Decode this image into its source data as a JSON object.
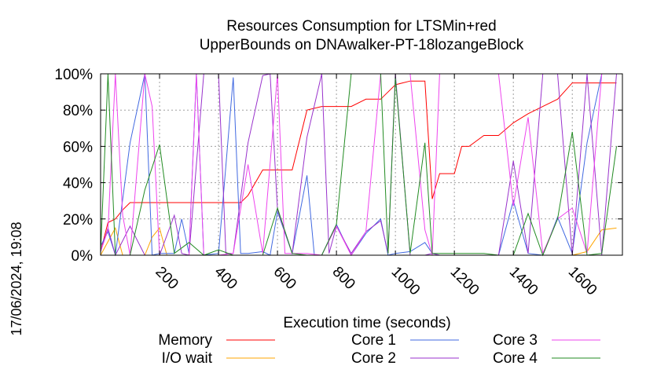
{
  "side_label": "17/06/2024, 19:08",
  "chart_data": {
    "type": "line",
    "title": "Resources Consumption for LTSMin+red\nUpperBounds on DNAwalker-PT-18lozangeBlock",
    "xlabel": "Execution time (seconds)",
    "ylabel": "",
    "xlim": [
      0,
      1770
    ],
    "ylim": [
      0,
      100
    ],
    "xticks": [
      200,
      400,
      600,
      800,
      1000,
      1200,
      1400,
      1600
    ],
    "yticks": [
      0,
      20,
      40,
      60,
      80,
      100
    ],
    "ytick_labels": [
      "0%",
      "20%",
      "40%",
      "60%",
      "80%",
      "100%"
    ],
    "grid": true,
    "legend_position": "bottom",
    "series": [
      {
        "name": "Memory",
        "color": "#ff0000",
        "points": [
          [
            0,
            2
          ],
          [
            25,
            18
          ],
          [
            50,
            20
          ],
          [
            75,
            25
          ],
          [
            100,
            29
          ],
          [
            150,
            29
          ],
          [
            200,
            29
          ],
          [
            250,
            29
          ],
          [
            300,
            29
          ],
          [
            350,
            29
          ],
          [
            400,
            29
          ],
          [
            450,
            29
          ],
          [
            475,
            29
          ],
          [
            500,
            33
          ],
          [
            550,
            47
          ],
          [
            600,
            47
          ],
          [
            625,
            47
          ],
          [
            650,
            47
          ],
          [
            700,
            80
          ],
          [
            750,
            82
          ],
          [
            800,
            82
          ],
          [
            850,
            82
          ],
          [
            900,
            86
          ],
          [
            950,
            86
          ],
          [
            1000,
            94
          ],
          [
            1050,
            96
          ],
          [
            1100,
            96
          ],
          [
            1125,
            31
          ],
          [
            1150,
            45
          ],
          [
            1175,
            45
          ],
          [
            1200,
            45
          ],
          [
            1225,
            60
          ],
          [
            1250,
            60
          ],
          [
            1300,
            66
          ],
          [
            1350,
            66
          ],
          [
            1400,
            73
          ],
          [
            1450,
            78
          ],
          [
            1500,
            82
          ],
          [
            1550,
            86
          ],
          [
            1600,
            95
          ],
          [
            1650,
            95
          ],
          [
            1700,
            95
          ],
          [
            1750,
            95
          ]
        ]
      },
      {
        "name": "I/O wait",
        "color": "#ffa500",
        "points": [
          [
            0,
            0
          ],
          [
            50,
            15
          ],
          [
            75,
            0
          ],
          [
            100,
            0
          ],
          [
            150,
            0
          ],
          [
            175,
            10
          ],
          [
            200,
            15
          ],
          [
            225,
            0
          ],
          [
            250,
            0
          ],
          [
            300,
            0
          ],
          [
            350,
            0
          ],
          [
            400,
            0
          ],
          [
            450,
            0
          ],
          [
            500,
            0
          ],
          [
            550,
            0
          ],
          [
            600,
            0
          ],
          [
            650,
            0
          ],
          [
            700,
            0
          ],
          [
            750,
            0
          ],
          [
            800,
            0
          ],
          [
            850,
            0
          ],
          [
            900,
            0
          ],
          [
            950,
            0
          ],
          [
            1000,
            0
          ],
          [
            1050,
            0
          ],
          [
            1100,
            0
          ],
          [
            1150,
            0
          ],
          [
            1200,
            0
          ],
          [
            1250,
            0
          ],
          [
            1300,
            0
          ],
          [
            1350,
            0
          ],
          [
            1400,
            0
          ],
          [
            1450,
            0
          ],
          [
            1500,
            0
          ],
          [
            1550,
            0
          ],
          [
            1600,
            0
          ],
          [
            1650,
            2
          ],
          [
            1700,
            14
          ],
          [
            1750,
            15
          ]
        ]
      },
      {
        "name": "Core 1",
        "color": "#4169e1",
        "points": [
          [
            0,
            5
          ],
          [
            25,
            13
          ],
          [
            50,
            0
          ],
          [
            100,
            62
          ],
          [
            150,
            100
          ],
          [
            175,
            0
          ],
          [
            200,
            1
          ],
          [
            250,
            1
          ],
          [
            275,
            20
          ],
          [
            300,
            1
          ],
          [
            325,
            100
          ],
          [
            350,
            0
          ],
          [
            400,
            1
          ],
          [
            450,
            98
          ],
          [
            475,
            1
          ],
          [
            500,
            1
          ],
          [
            550,
            2
          ],
          [
            575,
            0
          ],
          [
            600,
            24
          ],
          [
            650,
            1
          ],
          [
            700,
            44
          ],
          [
            725,
            0
          ],
          [
            750,
            0
          ],
          [
            800,
            17
          ],
          [
            850,
            0
          ],
          [
            900,
            12
          ],
          [
            950,
            20
          ],
          [
            975,
            0
          ],
          [
            1000,
            1
          ],
          [
            1050,
            2
          ],
          [
            1100,
            7
          ],
          [
            1125,
            1
          ],
          [
            1150,
            0
          ],
          [
            1200,
            0
          ],
          [
            1250,
            0
          ],
          [
            1300,
            0
          ],
          [
            1350,
            0
          ],
          [
            1400,
            30
          ],
          [
            1450,
            1
          ],
          [
            1500,
            0
          ],
          [
            1550,
            21
          ],
          [
            1600,
            1
          ],
          [
            1650,
            62
          ],
          [
            1700,
            100
          ],
          [
            1750,
            100
          ]
        ]
      },
      {
        "name": "Core 2",
        "color": "#9932cc",
        "points": [
          [
            0,
            2
          ],
          [
            25,
            15
          ],
          [
            50,
            0
          ],
          [
            100,
            16
          ],
          [
            150,
            0
          ],
          [
            200,
            0
          ],
          [
            250,
            22
          ],
          [
            275,
            1
          ],
          [
            300,
            0
          ],
          [
            350,
            100
          ],
          [
            400,
            100
          ],
          [
            425,
            1
          ],
          [
            450,
            1
          ],
          [
            500,
            62
          ],
          [
            550,
            99
          ],
          [
            575,
            100
          ],
          [
            600,
            25
          ],
          [
            650,
            1
          ],
          [
            700,
            65
          ],
          [
            750,
            100
          ],
          [
            775,
            1
          ],
          [
            800,
            16
          ],
          [
            850,
            1
          ],
          [
            900,
            13
          ],
          [
            950,
            19
          ],
          [
            975,
            1
          ],
          [
            1000,
            100
          ],
          [
            1050,
            0
          ],
          [
            1100,
            0
          ],
          [
            1125,
            1
          ],
          [
            1150,
            0
          ],
          [
            1200,
            0
          ],
          [
            1250,
            0
          ],
          [
            1300,
            0
          ],
          [
            1350,
            0
          ],
          [
            1400,
            52
          ],
          [
            1450,
            1
          ],
          [
            1500,
            100
          ],
          [
            1550,
            100
          ],
          [
            1600,
            0
          ],
          [
            1650,
            100
          ],
          [
            1700,
            0
          ],
          [
            1750,
            100
          ]
        ]
      },
      {
        "name": "Core 3",
        "color": "#ee44ee",
        "points": [
          [
            0,
            2
          ],
          [
            25,
            14
          ],
          [
            50,
            100
          ],
          [
            75,
            22
          ],
          [
            100,
            0
          ],
          [
            150,
            100
          ],
          [
            175,
            82
          ],
          [
            200,
            0
          ],
          [
            250,
            0
          ],
          [
            300,
            0
          ],
          [
            325,
            100
          ],
          [
            350,
            0
          ],
          [
            400,
            0
          ],
          [
            450,
            1
          ],
          [
            500,
            50
          ],
          [
            550,
            1
          ],
          [
            600,
            100
          ],
          [
            625,
            1
          ],
          [
            650,
            1
          ],
          [
            700,
            1
          ],
          [
            750,
            0
          ],
          [
            800,
            16
          ],
          [
            850,
            0
          ],
          [
            900,
            13
          ],
          [
            950,
            100
          ],
          [
            1000,
            100
          ],
          [
            1050,
            100
          ],
          [
            1100,
            14
          ],
          [
            1125,
            0
          ],
          [
            1150,
            100
          ],
          [
            1200,
            100
          ],
          [
            1250,
            100
          ],
          [
            1300,
            100
          ],
          [
            1350,
            100
          ],
          [
            1400,
            27
          ],
          [
            1450,
            76
          ],
          [
            1500,
            1
          ],
          [
            1550,
            20
          ],
          [
            1600,
            26
          ],
          [
            1650,
            1
          ],
          [
            1700,
            100
          ],
          [
            1750,
            100
          ]
        ]
      },
      {
        "name": "Core 4",
        "color": "#228b22",
        "points": [
          [
            0,
            1
          ],
          [
            25,
            100
          ],
          [
            50,
            0
          ],
          [
            100,
            0
          ],
          [
            150,
            36
          ],
          [
            200,
            61
          ],
          [
            250,
            1
          ],
          [
            300,
            7
          ],
          [
            350,
            0
          ],
          [
            400,
            3
          ],
          [
            450,
            0
          ],
          [
            500,
            0
          ],
          [
            550,
            0
          ],
          [
            600,
            26
          ],
          [
            650,
            1
          ],
          [
            700,
            0
          ],
          [
            750,
            0
          ],
          [
            800,
            17
          ],
          [
            850,
            100
          ],
          [
            900,
            100
          ],
          [
            950,
            100
          ],
          [
            975,
            1
          ],
          [
            1000,
            98
          ],
          [
            1050,
            1
          ],
          [
            1100,
            62
          ],
          [
            1125,
            1
          ],
          [
            1150,
            1
          ],
          [
            1200,
            1
          ],
          [
            1250,
            1
          ],
          [
            1300,
            1
          ],
          [
            1350,
            0
          ],
          [
            1400,
            0
          ],
          [
            1450,
            23
          ],
          [
            1500,
            0
          ],
          [
            1550,
            20
          ],
          [
            1600,
            68
          ],
          [
            1650,
            0
          ],
          [
            1700,
            1
          ],
          [
            1750,
            60
          ]
        ]
      }
    ]
  }
}
